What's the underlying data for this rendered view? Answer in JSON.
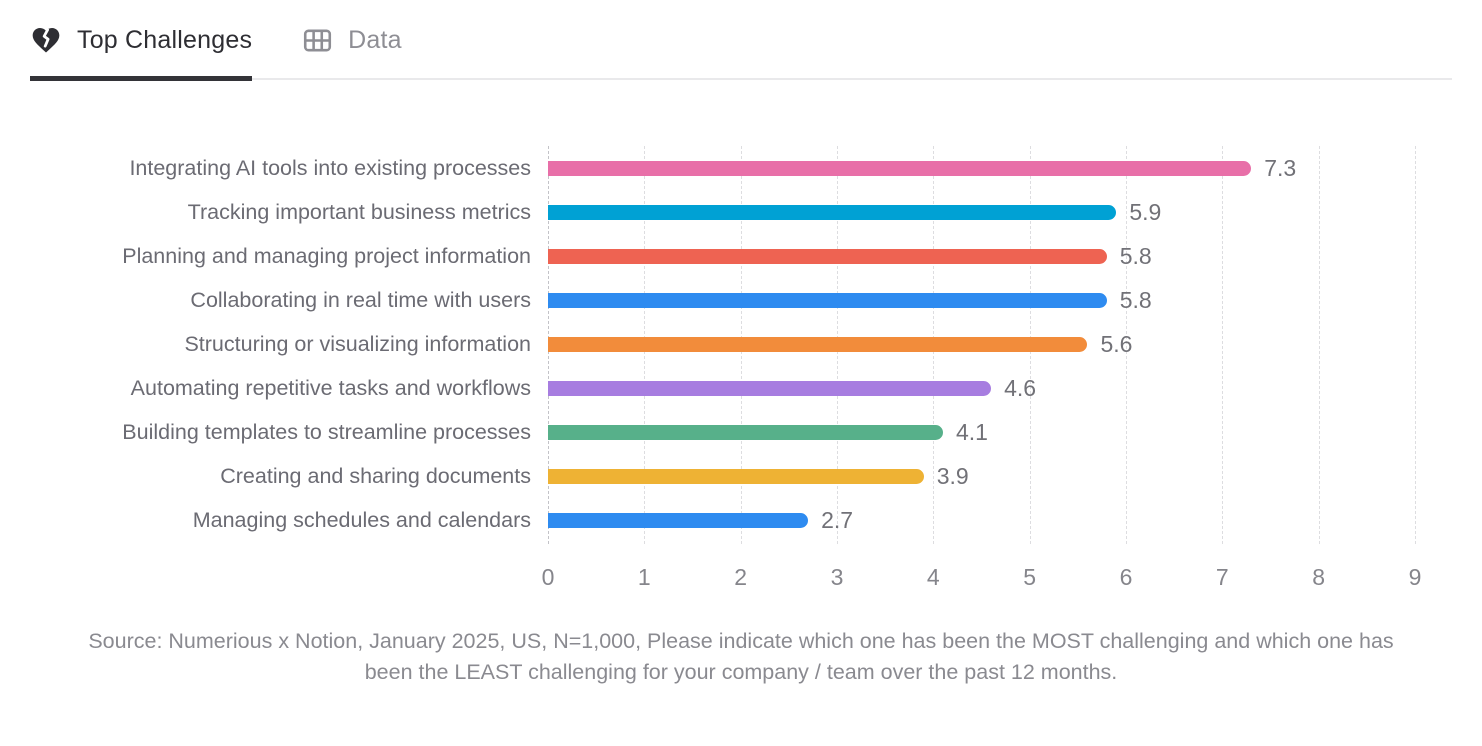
{
  "tabs": [
    {
      "label": "Top Challenges",
      "icon": "broken-heart-icon",
      "active": true
    },
    {
      "label": "Data",
      "icon": "table-icon",
      "active": false
    }
  ],
  "chart_data": {
    "type": "bar",
    "orientation": "horizontal",
    "categories": [
      "Integrating AI tools into existing processes",
      "Tracking important business metrics",
      "Planning and managing project information",
      "Collaborating in real time with users",
      "Structuring or visualizing information",
      "Automating repetitive tasks and workflows",
      "Building templates to streamline processes",
      "Creating and sharing documents",
      "Managing schedules and calendars"
    ],
    "values": [
      7.3,
      5.9,
      5.8,
      5.8,
      5.6,
      4.6,
      4.1,
      3.9,
      2.7
    ],
    "bar_colors": [
      "#e86fa8",
      "#00a1d4",
      "#ee6352",
      "#2e8bf0",
      "#f28c3b",
      "#a77de0",
      "#57b08a",
      "#eeb234",
      "#2e8bf0"
    ],
    "x_ticks": [
      0,
      1,
      2,
      3,
      4,
      5,
      6,
      7,
      8,
      9
    ],
    "xlim": [
      0,
      9
    ],
    "grid": "vertical-dashed",
    "value_label_format": "0.0"
  },
  "source_note": "Source: Numerious x Notion, January 2025, US, N=1,000, Please indicate which one has been the MOST challenging and which one has been the LEAST challenging for your company /  team over the past 12 months.",
  "colors": {
    "tab_active_text": "#2e2e33",
    "tab_inactive_text": "#8e8e94",
    "tab_underline": "#333338",
    "tab_divider": "#e9e9eb",
    "category_label": "#6b6b73",
    "value_label": "#717177",
    "tick_label": "#85858b",
    "gridline": "#dddde0",
    "axis_line": "#c3c3c8",
    "source_text": "#8a8a90",
    "background": "#ffffff"
  }
}
